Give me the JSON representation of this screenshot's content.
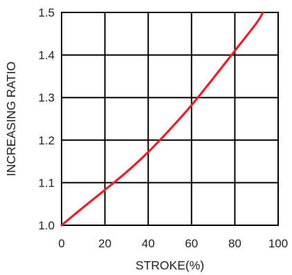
{
  "chart_data": {
    "type": "line",
    "xlabel": "STROKE(%)",
    "ylabel": "INCREASING RATIO",
    "xlim": [
      0,
      100
    ],
    "ylim": [
      1.0,
      1.5
    ],
    "x_ticks": [
      "0",
      "20",
      "40",
      "60",
      "80",
      "100"
    ],
    "y_ticks": [
      "1.0",
      "1.1",
      "1.2",
      "1.3",
      "1.4",
      "1.5"
    ],
    "grid": true,
    "series": [
      {
        "color": "#e8202a",
        "x": [
          0,
          10,
          20,
          30,
          40,
          50,
          60,
          70,
          80,
          90,
          93
        ],
        "y": [
          1.0,
          1.042,
          1.083,
          1.125,
          1.172,
          1.225,
          1.282,
          1.345,
          1.41,
          1.475,
          1.5
        ]
      }
    ]
  }
}
